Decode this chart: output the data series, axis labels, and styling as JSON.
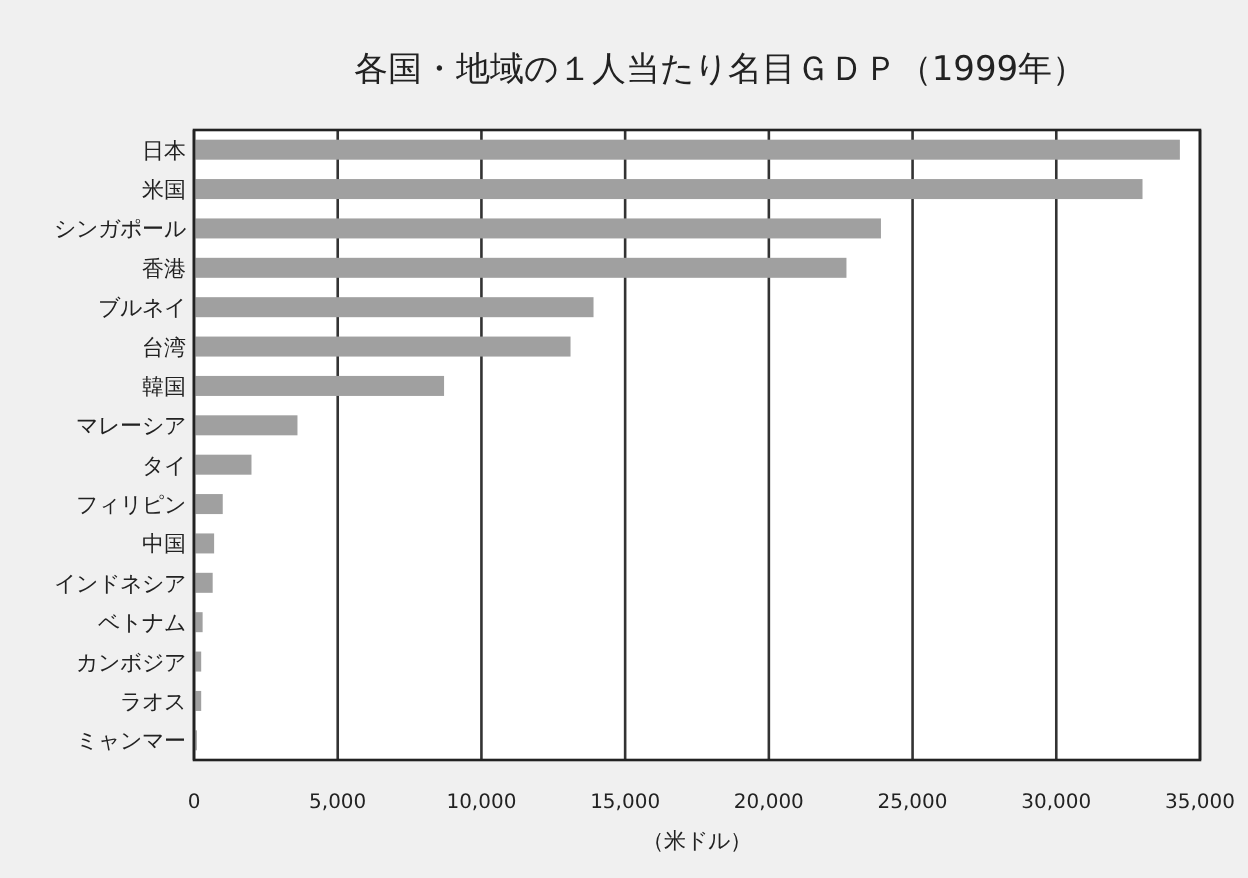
{
  "chart_data": {
    "type": "bar",
    "orientation": "horizontal",
    "title": "各国・地域の１人当たり名目ＧＤＰ（1999年）",
    "xlabel": "（米ドル）",
    "categories": [
      "日本",
      "米国",
      "シンガポール",
      "香港",
      "ブルネイ",
      "台湾",
      "韓国",
      "マレーシア",
      "タイ",
      "フィリピン",
      "中国",
      "インドネシア",
      "ベトナム",
      "カンボジア",
      "ラオス",
      "ミャンマー"
    ],
    "values": [
      34300,
      33000,
      23900,
      22700,
      13900,
      13100,
      8700,
      3600,
      2000,
      1000,
      700,
      650,
      300,
      250,
      250,
      100
    ],
    "color": "#a0a0a0",
    "xlim": [
      0,
      35000
    ],
    "xticks": [
      0,
      {
        "value": 5000,
        "label": "5,000"
      },
      {
        "value": 10000,
        "label": "10,000"
      },
      {
        "value": 15000,
        "label": "15,000"
      },
      {
        "value": 20000,
        "label": "20,000"
      },
      {
        "value": 25000,
        "label": "25,000"
      },
      {
        "value": 30000,
        "label": "30,000"
      },
      {
        "value": 35000,
        "label": "35,000"
      }
    ],
    "grid": "x"
  }
}
